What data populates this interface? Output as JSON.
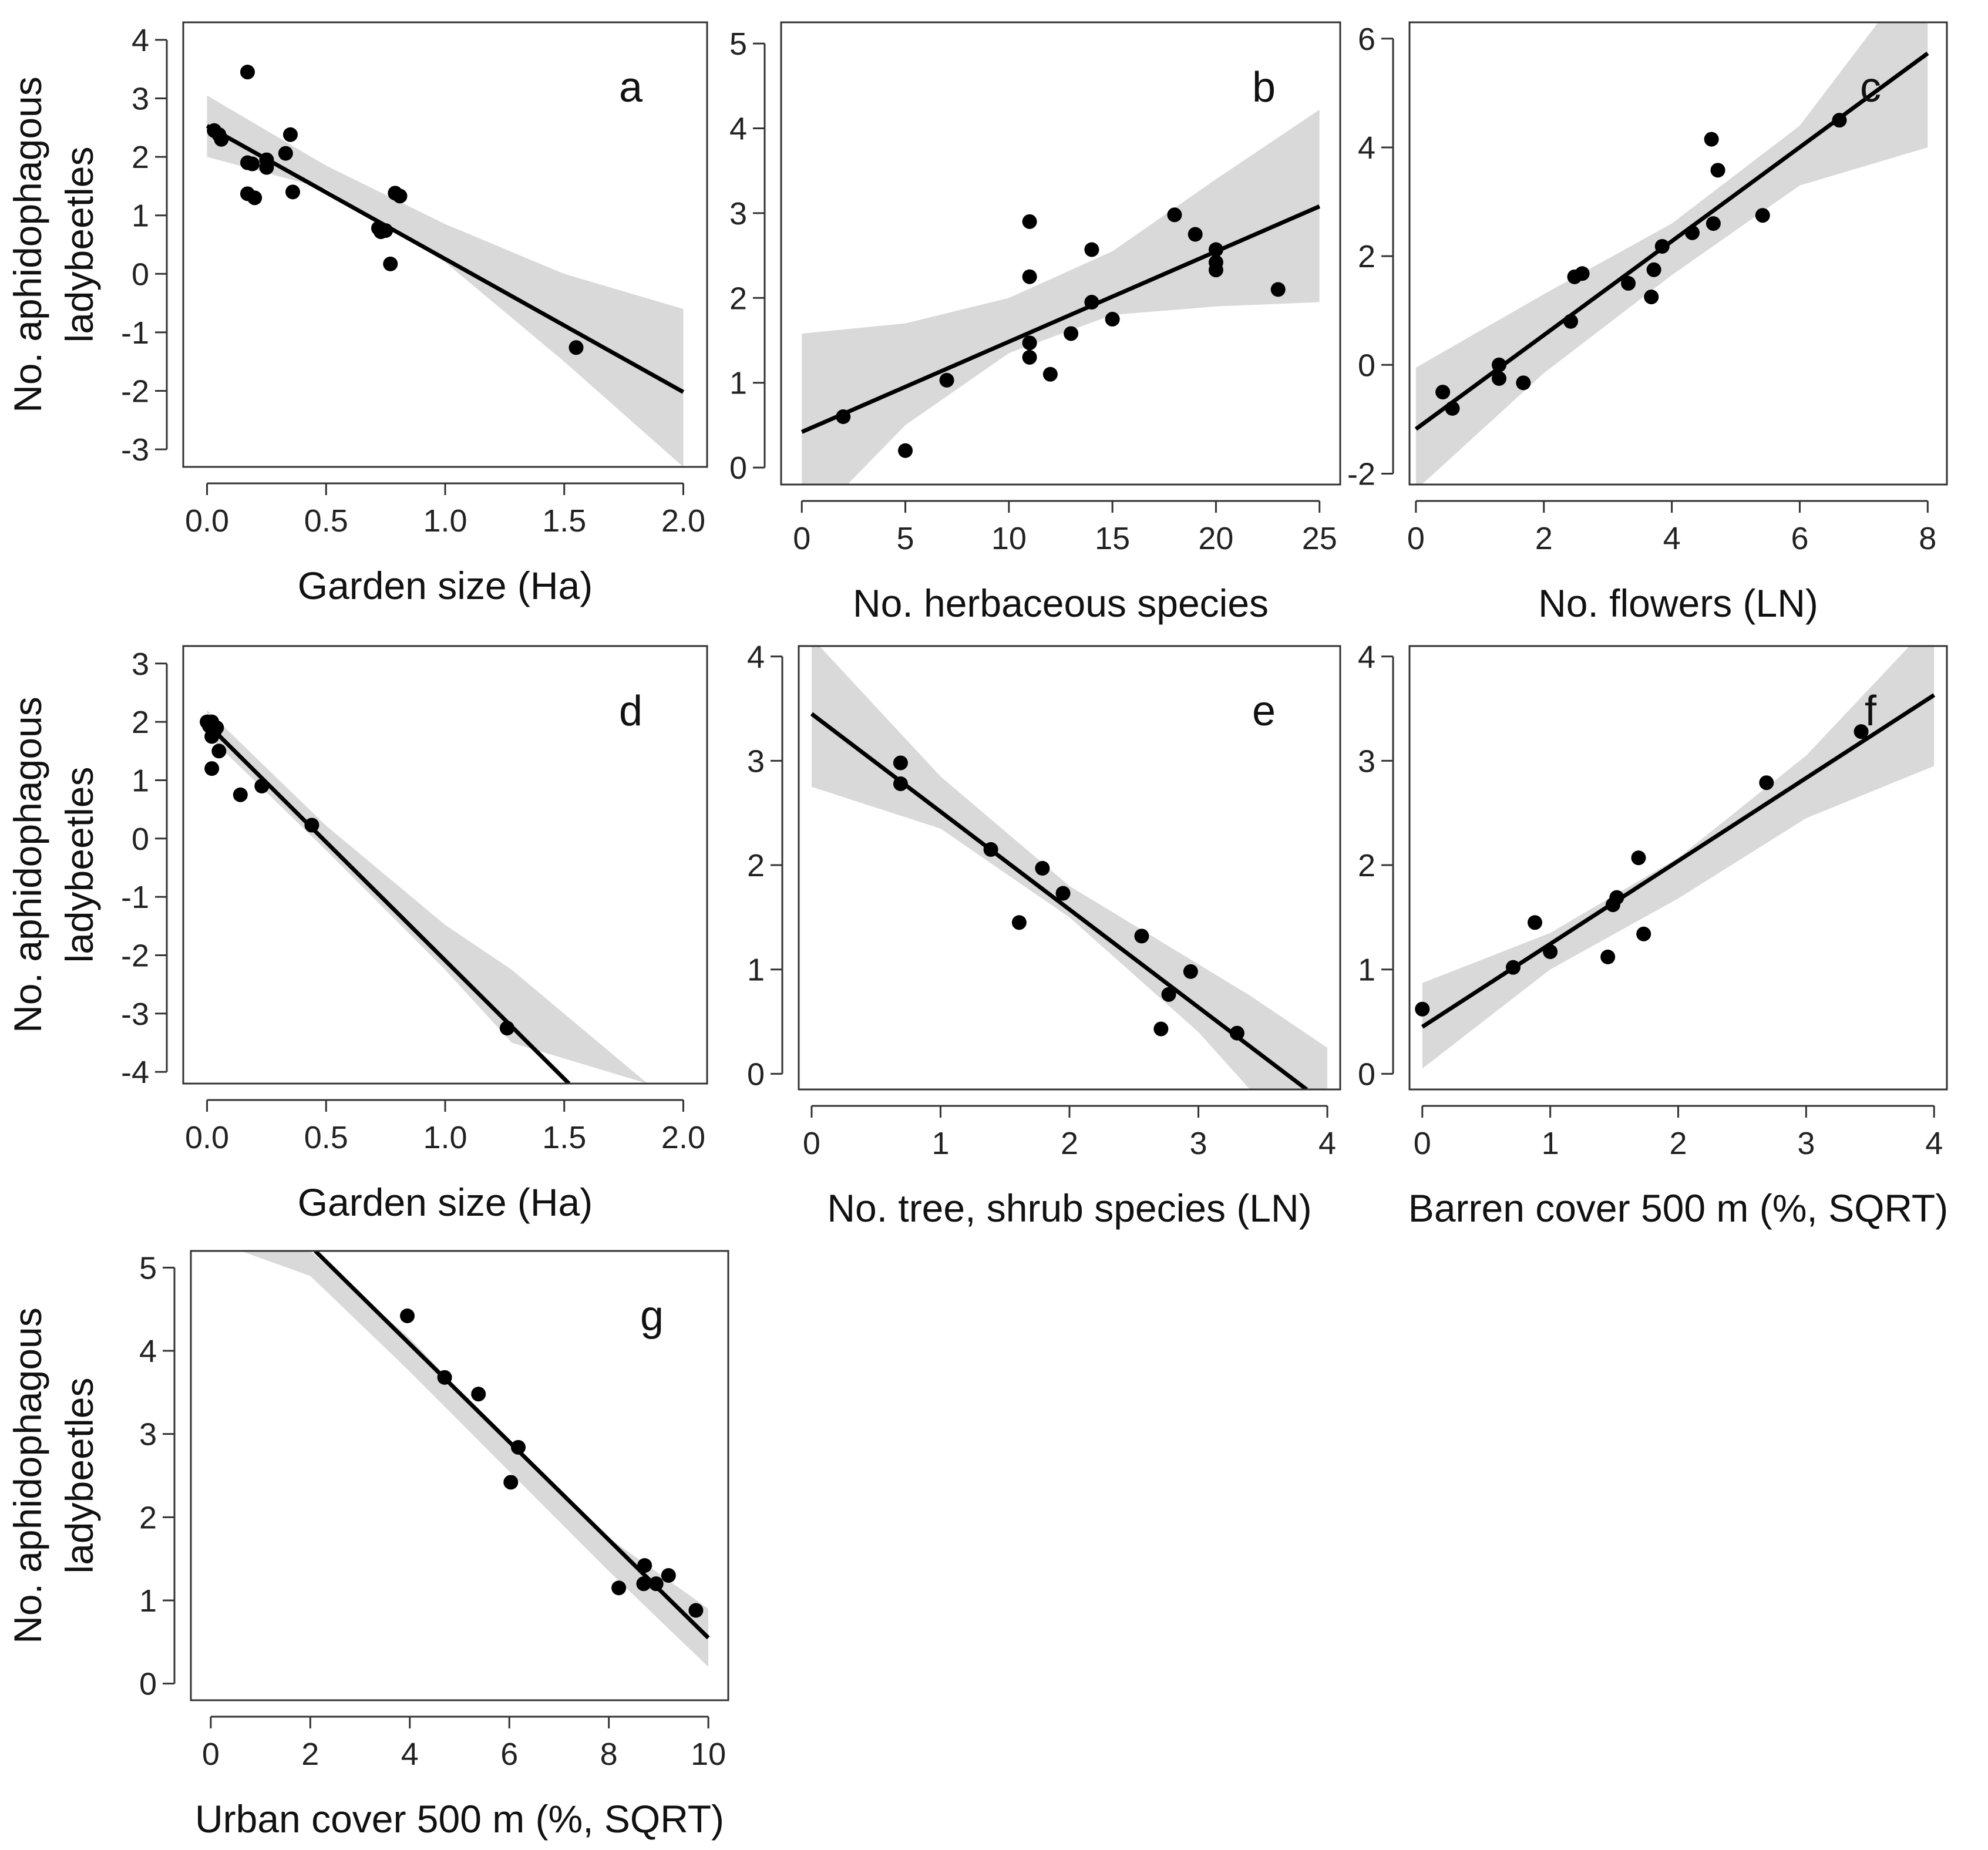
{
  "chart_data": [
    {
      "type": "scatter",
      "panel_label": "a",
      "xlabel": "Garden size (Ha)",
      "ylabel": [
        "No. aphidophagous",
        "ladybeetles"
      ],
      "xlim": [
        -0.1,
        2.1
      ],
      "ylim": [
        -3.3,
        4.3
      ],
      "xticks": [
        0.0,
        0.5,
        1.0,
        1.5,
        2.0
      ],
      "xtick_labels": [
        "0.0",
        "0.5",
        "1.0",
        "1.5",
        "2.0"
      ],
      "yticks": [
        -3,
        -2,
        -1,
        0,
        1,
        2,
        3,
        4
      ],
      "ytick_labels": [
        "-3",
        "-2",
        "-1",
        "0",
        "1",
        "2",
        "3",
        "4"
      ],
      "fit": {
        "x0": 0.0,
        "y0": 2.53,
        "x1": 2.0,
        "y1": -2.02
      },
      "band": {
        "xs": [
          0.0,
          0.5,
          1.0,
          1.5,
          2.0
        ],
        "lower": [
          2.0,
          1.45,
          0.2,
          -1.5,
          -3.3
        ],
        "upper": [
          3.05,
          1.85,
          0.85,
          0.0,
          -0.6
        ]
      },
      "points": [
        {
          "x": 0.03,
          "y": 2.45
        },
        {
          "x": 0.05,
          "y": 2.38
        },
        {
          "x": 0.06,
          "y": 2.3
        },
        {
          "x": 0.17,
          "y": 3.45
        },
        {
          "x": 0.17,
          "y": 1.9
        },
        {
          "x": 0.17,
          "y": 1.37
        },
        {
          "x": 0.19,
          "y": 1.88
        },
        {
          "x": 0.2,
          "y": 1.3
        },
        {
          "x": 0.25,
          "y": 1.95
        },
        {
          "x": 0.25,
          "y": 1.82
        },
        {
          "x": 0.33,
          "y": 2.06
        },
        {
          "x": 0.35,
          "y": 2.38
        },
        {
          "x": 0.36,
          "y": 1.4
        },
        {
          "x": 0.72,
          "y": 0.78
        },
        {
          "x": 0.73,
          "y": 0.72
        },
        {
          "x": 0.75,
          "y": 0.74
        },
        {
          "x": 0.77,
          "y": 0.17
        },
        {
          "x": 0.79,
          "y": 1.38
        },
        {
          "x": 0.81,
          "y": 1.33
        },
        {
          "x": 1.55,
          "y": -1.26
        }
      ]
    },
    {
      "type": "scatter",
      "panel_label": "b",
      "xlabel": "No. herbaceous species",
      "ylabel": [
        "",
        ""
      ],
      "xlim": [
        -1,
        26
      ],
      "ylim": [
        -0.2,
        5.25
      ],
      "xticks": [
        0,
        5,
        10,
        15,
        20,
        25
      ],
      "xtick_labels": [
        "0",
        "5",
        "10",
        "15",
        "20",
        "25"
      ],
      "yticks": [
        0,
        1,
        2,
        3,
        4,
        5
      ],
      "ytick_labels": [
        "0",
        "1",
        "2",
        "3",
        "4",
        "5"
      ],
      "fit": {
        "x0": 0,
        "y0": 0.42,
        "x1": 25,
        "y1": 3.08
      },
      "band": {
        "xs": [
          0,
          5,
          10,
          15,
          20,
          25
        ],
        "lower": [
          -0.75,
          0.5,
          1.35,
          1.8,
          1.9,
          1.95
        ],
        "upper": [
          1.58,
          1.7,
          2.0,
          2.55,
          3.4,
          4.22
        ]
      },
      "points": [
        {
          "x": 2,
          "y": 0.6
        },
        {
          "x": 5,
          "y": 0.2
        },
        {
          "x": 7,
          "y": 1.03
        },
        {
          "x": 11,
          "y": 2.9
        },
        {
          "x": 11,
          "y": 2.25
        },
        {
          "x": 11,
          "y": 1.47
        },
        {
          "x": 11,
          "y": 1.3
        },
        {
          "x": 12,
          "y": 1.1
        },
        {
          "x": 13,
          "y": 1.58
        },
        {
          "x": 14,
          "y": 2.57
        },
        {
          "x": 14,
          "y": 1.95
        },
        {
          "x": 15,
          "y": 1.75
        },
        {
          "x": 18,
          "y": 2.98
        },
        {
          "x": 19,
          "y": 2.75
        },
        {
          "x": 20,
          "y": 2.57
        },
        {
          "x": 20,
          "y": 2.42
        },
        {
          "x": 20,
          "y": 2.33
        },
        {
          "x": 23,
          "y": 2.1
        }
      ]
    },
    {
      "type": "scatter",
      "panel_label": "c",
      "xlabel": "No. flowers (LN)",
      "ylabel": [
        "",
        ""
      ],
      "xlim": [
        -0.1,
        8.3
      ],
      "ylim": [
        -2.2,
        6.3
      ],
      "xticks": [
        0,
        2,
        4,
        6,
        8
      ],
      "xtick_labels": [
        "0",
        "2",
        "4",
        "6",
        "8"
      ],
      "yticks": [
        -2,
        0,
        2,
        4,
        6
      ],
      "ytick_labels": [
        "-2",
        "0",
        "2",
        "4",
        "6"
      ],
      "fit": {
        "x0": 0,
        "y0": -1.18,
        "x1": 8,
        "y1": 5.73
      },
      "band": {
        "xs": [
          0,
          2,
          4,
          6,
          8
        ],
        "lower": [
          -2.3,
          -0.15,
          1.65,
          3.3,
          4.0
        ],
        "upper": [
          -0.05,
          1.3,
          2.6,
          4.4,
          7.5
        ]
      },
      "points": [
        {
          "x": 0.42,
          "y": -0.5
        },
        {
          "x": 0.57,
          "y": -0.8
        },
        {
          "x": 1.3,
          "y": 0.0
        },
        {
          "x": 1.3,
          "y": -0.25
        },
        {
          "x": 1.68,
          "y": -0.33
        },
        {
          "x": 2.42,
          "y": 0.8
        },
        {
          "x": 2.48,
          "y": 1.62
        },
        {
          "x": 2.6,
          "y": 1.68
        },
        {
          "x": 3.32,
          "y": 1.5
        },
        {
          "x": 3.68,
          "y": 1.25
        },
        {
          "x": 3.72,
          "y": 1.75
        },
        {
          "x": 3.85,
          "y": 2.18
        },
        {
          "x": 4.32,
          "y": 2.43
        },
        {
          "x": 4.62,
          "y": 4.15
        },
        {
          "x": 4.65,
          "y": 2.6
        },
        {
          "x": 4.72,
          "y": 3.58
        },
        {
          "x": 5.42,
          "y": 2.75
        },
        {
          "x": 6.62,
          "y": 4.5
        }
      ]
    },
    {
      "type": "scatter",
      "panel_label": "d",
      "xlabel": "Garden size (Ha)",
      "ylabel": [
        "No. aphidophagous",
        "ladybeetles"
      ],
      "xlim": [
        -0.1,
        2.1
      ],
      "ylim": [
        -4.2,
        3.3
      ],
      "xticks": [
        0.0,
        0.5,
        1.0,
        1.5,
        2.0
      ],
      "xtick_labels": [
        "0.0",
        "0.5",
        "1.0",
        "1.5",
        "2.0"
      ],
      "yticks": [
        -4,
        -3,
        -2,
        -1,
        0,
        1,
        2,
        3
      ],
      "ytick_labels": [
        "-4",
        "-3",
        "-2",
        "-1",
        "0",
        "1",
        "2",
        "3"
      ],
      "fit": {
        "x0": 0.0,
        "y0": 1.97,
        "x1": 1.52,
        "y1": -4.2
      },
      "band": {
        "xs": [
          0.0,
          0.5,
          1.0,
          1.28,
          1.85
        ],
        "lower": [
          1.78,
          -0.2,
          -2.25,
          -3.5,
          -4.2
        ],
        "upper": [
          2.2,
          0.22,
          -1.48,
          -2.25,
          -4.2
        ]
      },
      "points": [
        {
          "x": 0.0,
          "y": 2.0
        },
        {
          "x": 0.01,
          "y": 1.93
        },
        {
          "x": 0.02,
          "y": 2.0
        },
        {
          "x": 0.02,
          "y": 1.75
        },
        {
          "x": 0.02,
          "y": 1.2
        },
        {
          "x": 0.03,
          "y": 1.82
        },
        {
          "x": 0.04,
          "y": 1.9
        },
        {
          "x": 0.05,
          "y": 1.5
        },
        {
          "x": 0.14,
          "y": 0.75
        },
        {
          "x": 0.23,
          "y": 0.9
        },
        {
          "x": 0.44,
          "y": 0.23
        },
        {
          "x": 1.26,
          "y": -3.25
        }
      ]
    },
    {
      "type": "scatter",
      "panel_label": "e",
      "xlabel": "No. tree, shrub species (LN)",
      "ylabel": [
        "",
        ""
      ],
      "xlim": [
        -0.1,
        4.1
      ],
      "ylim": [
        -0.15,
        4.1
      ],
      "xticks": [
        0,
        1,
        2,
        3,
        4
      ],
      "xtick_labels": [
        "0",
        "1",
        "2",
        "3",
        "4"
      ],
      "yticks": [
        0,
        1,
        2,
        3,
        4
      ],
      "ytick_labels": [
        "0",
        "1",
        "2",
        "3",
        "4"
      ],
      "fit": {
        "x0": 0,
        "y0": 3.45,
        "x1": 3.84,
        "y1": -0.15
      },
      "band": {
        "xs": [
          0,
          1,
          2,
          3,
          3.4,
          4.0
        ],
        "lower": [
          2.75,
          2.35,
          1.5,
          0.4,
          -0.15,
          -0.15
        ],
        "upper": [
          4.18,
          2.85,
          1.8,
          1.05,
          0.75,
          0.25
        ]
      },
      "points": [
        {
          "x": 0.69,
          "y": 2.98
        },
        {
          "x": 0.69,
          "y": 2.78
        },
        {
          "x": 1.39,
          "y": 2.15
        },
        {
          "x": 1.61,
          "y": 1.45
        },
        {
          "x": 1.79,
          "y": 1.97
        },
        {
          "x": 1.95,
          "y": 1.73
        },
        {
          "x": 2.56,
          "y": 1.32
        },
        {
          "x": 2.71,
          "y": 0.43
        },
        {
          "x": 2.77,
          "y": 0.76
        },
        {
          "x": 2.94,
          "y": 0.98
        },
        {
          "x": 3.3,
          "y": 0.39
        }
      ]
    },
    {
      "type": "scatter",
      "panel_label": "f",
      "xlabel": "Barren cover 500 m (%, SQRT)",
      "ylabel": [
        "",
        ""
      ],
      "xlim": [
        -0.1,
        4.1
      ],
      "ylim": [
        -0.15,
        4.1
      ],
      "xticks": [
        0,
        1,
        2,
        3,
        4
      ],
      "xtick_labels": [
        "0",
        "1",
        "2",
        "3",
        "4"
      ],
      "yticks": [
        0,
        1,
        2,
        3,
        4
      ],
      "ytick_labels": [
        "0",
        "1",
        "2",
        "3",
        "4"
      ],
      "fit": {
        "x0": 0,
        "y0": 0.45,
        "x1": 4,
        "y1": 3.63
      },
      "band": {
        "xs": [
          0,
          1,
          2,
          3,
          4
        ],
        "lower": [
          0.05,
          1.0,
          1.68,
          2.45,
          2.95
        ],
        "upper": [
          0.87,
          1.35,
          2.07,
          3.05,
          4.35
        ]
      },
      "points": [
        {
          "x": 0.0,
          "y": 0.62
        },
        {
          "x": 0.71,
          "y": 1.02
        },
        {
          "x": 0.88,
          "y": 1.45
        },
        {
          "x": 1.0,
          "y": 1.17
        },
        {
          "x": 1.45,
          "y": 1.12
        },
        {
          "x": 1.49,
          "y": 1.62
        },
        {
          "x": 1.52,
          "y": 1.69
        },
        {
          "x": 1.69,
          "y": 2.07
        },
        {
          "x": 1.73,
          "y": 1.34
        },
        {
          "x": 2.69,
          "y": 2.79
        },
        {
          "x": 3.43,
          "y": 3.28
        }
      ]
    },
    {
      "type": "scatter",
      "panel_label": "g",
      "xlabel": "Urban cover 500 m (%, SQRT)",
      "ylabel": [
        "No. aphidophagous",
        "ladybeetles"
      ],
      "xlim": [
        -0.4,
        10.4
      ],
      "ylim": [
        -0.2,
        5.2
      ],
      "xticks": [
        0,
        2,
        4,
        6,
        8,
        10
      ],
      "xtick_labels": [
        "0",
        "2",
        "4",
        "6",
        "8",
        "10"
      ],
      "yticks": [
        0,
        1,
        2,
        3,
        4,
        5
      ],
      "ytick_labels": [
        "0",
        "1",
        "2",
        "3",
        "4",
        "5"
      ],
      "fit": {
        "x0": 2.1,
        "y0": 5.2,
        "x1": 10,
        "y1": 0.55
      },
      "band": {
        "xs": [
          0.6,
          2,
          4,
          6,
          8,
          10
        ],
        "lower": [
          5.2,
          4.9,
          3.75,
          2.55,
          1.35,
          0.2
        ],
        "upper": [
          5.2,
          5.2,
          4.15,
          2.9,
          1.75,
          0.9
        ]
      },
      "points": [
        {
          "x": 3.95,
          "y": 4.42
        },
        {
          "x": 4.7,
          "y": 3.68
        },
        {
          "x": 5.38,
          "y": 3.48
        },
        {
          "x": 6.03,
          "y": 2.42
        },
        {
          "x": 6.18,
          "y": 2.84
        },
        {
          "x": 8.2,
          "y": 1.15
        },
        {
          "x": 8.7,
          "y": 1.2
        },
        {
          "x": 8.72,
          "y": 1.42
        },
        {
          "x": 8.95,
          "y": 1.2
        },
        {
          "x": 9.2,
          "y": 1.3
        },
        {
          "x": 9.75,
          "y": 0.88
        }
      ]
    }
  ]
}
